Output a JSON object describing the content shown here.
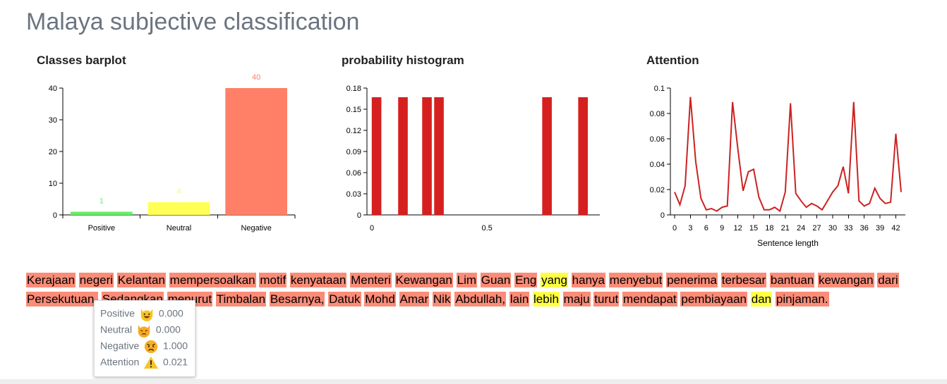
{
  "page_title": "Malaya subjective classification",
  "chart_data": [
    {
      "type": "bar",
      "title": "Classes barplot",
      "categories": [
        "Positive",
        "Neutral",
        "Negative"
      ],
      "values": [
        1,
        4,
        40
      ],
      "colors": [
        "#66ee66",
        "#ffff55",
        "#ff8066"
      ],
      "ylim": [
        0,
        40
      ],
      "yticks": [
        "0",
        "10",
        "20",
        "30",
        "40"
      ]
    },
    {
      "type": "bar",
      "title": "probability histogram",
      "x": [
        0.04,
        0.15,
        0.25,
        0.3,
        0.75,
        0.9
      ],
      "values": [
        0.167,
        0.167,
        0.167,
        0.167,
        0.167,
        0.167
      ],
      "bar_width": 0.04,
      "xlim": [
        0,
        0.97
      ],
      "ylim": [
        0,
        0.18
      ],
      "yticks": [
        "0",
        "0.03",
        "0.06",
        "0.09",
        "0.12",
        "0.15",
        "0.18"
      ],
      "xticks": [
        "0",
        "0.5"
      ],
      "color": "#d62020"
    },
    {
      "type": "line",
      "title": "Attention",
      "xlabel": "Sentence length",
      "x": [
        0,
        1,
        2,
        3,
        4,
        5,
        6,
        7,
        8,
        9,
        10,
        11,
        12,
        13,
        14,
        15,
        16,
        17,
        18,
        19,
        20,
        21,
        22,
        23,
        24,
        25,
        26,
        27,
        28,
        29,
        30,
        31,
        32,
        33,
        34,
        35,
        36,
        37,
        38,
        39,
        40,
        41,
        42,
        43
      ],
      "values": [
        0.018,
        0.008,
        0.023,
        0.093,
        0.042,
        0.013,
        0.004,
        0.005,
        0.003,
        0.006,
        0.007,
        0.089,
        0.052,
        0.019,
        0.034,
        0.036,
        0.014,
        0.004,
        0.004,
        0.006,
        0.003,
        0.018,
        0.088,
        0.017,
        0.011,
        0.006,
        0.009,
        0.007,
        0.004,
        0.011,
        0.018,
        0.023,
        0.038,
        0.017,
        0.089,
        0.011,
        0.007,
        0.009,
        0.021,
        0.013,
        0.009,
        0.01,
        0.064,
        0.018
      ],
      "xlim": [
        0,
        43
      ],
      "ylim": [
        0,
        0.1
      ],
      "yticks": [
        "0",
        "0.02",
        "0.04",
        "0.06",
        "0.08",
        "0.1"
      ],
      "xticks": [
        "0",
        "3",
        "6",
        "9",
        "12",
        "15",
        "18",
        "21",
        "24",
        "27",
        "30",
        "33",
        "36",
        "39",
        "42"
      ],
      "color": "#cc2222"
    }
  ],
  "sentence": {
    "colors": {
      "negative": "#fa8c78",
      "neutral": "#ffff44"
    },
    "words": [
      {
        "text": "Kerajaan",
        "label": "negative"
      },
      {
        "text": "negeri",
        "label": "negative"
      },
      {
        "text": "Kelantan",
        "label": "negative"
      },
      {
        "text": "mempersoalkan",
        "label": "negative"
      },
      {
        "text": "motif",
        "label": "negative"
      },
      {
        "text": "kenyataan",
        "label": "negative"
      },
      {
        "text": "Menteri",
        "label": "negative"
      },
      {
        "text": "Kewangan",
        "label": "negative"
      },
      {
        "text": "Lim",
        "label": "negative"
      },
      {
        "text": "Guan",
        "label": "negative"
      },
      {
        "text": "Eng",
        "label": "negative"
      },
      {
        "text": "yang",
        "label": "neutral"
      },
      {
        "text": "hanya",
        "label": "negative"
      },
      {
        "text": "menyebut",
        "label": "negative"
      },
      {
        "text": "penerima",
        "label": "negative"
      },
      {
        "text": "terbesar",
        "label": "negative"
      },
      {
        "text": "bantuan",
        "label": "negative"
      },
      {
        "text": "kewangan",
        "label": "negative"
      },
      {
        "text": "dari",
        "label": "negative"
      },
      {
        "text": "Persekutuan.",
        "label": "negative"
      },
      {
        "text": "Sedangkan",
        "label": "negative"
      },
      {
        "text": "menurut",
        "label": "negative"
      },
      {
        "text": "Timbalan",
        "label": "negative"
      },
      {
        "text": "Besarnya,",
        "label": "negative"
      },
      {
        "text": "Datuk",
        "label": "negative"
      },
      {
        "text": "Mohd",
        "label": "negative"
      },
      {
        "text": "Amar",
        "label": "negative"
      },
      {
        "text": "Nik",
        "label": "negative"
      },
      {
        "text": "Abdullah,",
        "label": "negative"
      },
      {
        "text": "lain",
        "label": "negative"
      },
      {
        "text": "lebih",
        "label": "neutral"
      },
      {
        "text": "maju",
        "label": "negative"
      },
      {
        "text": "turut",
        "label": "negative"
      },
      {
        "text": "mendapat",
        "label": "negative"
      },
      {
        "text": "pembiayaan",
        "label": "negative"
      },
      {
        "text": "dan",
        "label": "neutral"
      },
      {
        "text": "pinjaman.",
        "label": "negative"
      }
    ]
  },
  "tooltip": {
    "rows": [
      {
        "label": "Positive",
        "icon": "grinning-cat-icon",
        "value": "0.000"
      },
      {
        "label": "Neutral",
        "icon": "cat-icon",
        "value": "0.000"
      },
      {
        "label": "Negative",
        "icon": "angry-face-icon",
        "value": "1.000"
      },
      {
        "label": "Attention",
        "icon": "warning-icon",
        "value": "0.021"
      }
    ]
  }
}
